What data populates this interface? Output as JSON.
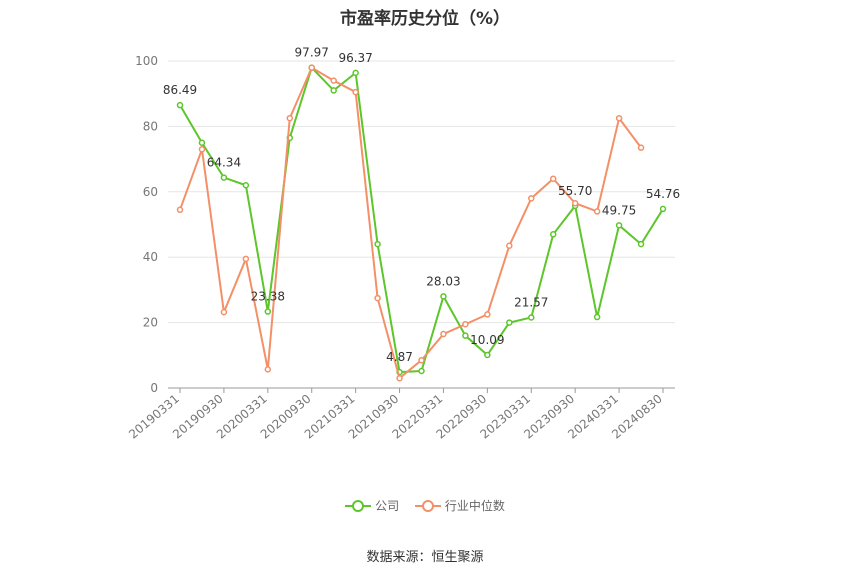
{
  "title": "市盈率历史分位（%）",
  "source": "数据来源：恒生聚源",
  "colors": {
    "company": "#5cc62b",
    "industry": "#f39067"
  },
  "chart_data": {
    "type": "line",
    "title": "市盈率历史分位（%）",
    "ylim": [
      0,
      100
    ],
    "yticks": [
      0,
      20,
      40,
      60,
      80,
      100
    ],
    "grid": true,
    "legend": "bottom",
    "x_tick_labels": [
      "20190331",
      "20190930",
      "20200331",
      "20200930",
      "20210331",
      "20210930",
      "20220331",
      "20220930",
      "20230331",
      "20230930",
      "20240331",
      "20240830"
    ],
    "x": [
      "20190331",
      "20190630",
      "20190930",
      "20191231",
      "20200331",
      "20200630",
      "20200930",
      "20201231",
      "20210331",
      "20210630",
      "20210930",
      "20211231",
      "20220331",
      "20220630",
      "20220930",
      "20221231",
      "20230331",
      "20230630",
      "20230930",
      "20231231",
      "20240331",
      "20240630",
      "20240830"
    ],
    "series": [
      {
        "name": "公司",
        "values": [
          86.49,
          75.0,
          64.34,
          62.0,
          23.38,
          76.5,
          97.97,
          91.0,
          96.37,
          44.0,
          4.87,
          5.2,
          28.03,
          16.0,
          10.09,
          20.0,
          21.57,
          47.0,
          55.7,
          21.7,
          49.75,
          44.0,
          54.76
        ]
      },
      {
        "name": "行业中位数",
        "values": [
          54.5,
          73.0,
          23.2,
          39.5,
          5.7,
          82.5,
          97.97,
          94.0,
          90.5,
          27.5,
          3.0,
          8.5,
          16.5,
          19.5,
          22.5,
          43.5,
          58.0,
          64.0,
          56.5,
          54.0,
          82.5,
          73.5,
          null
        ]
      }
    ],
    "data_labels": [
      {
        "series": 0,
        "index": 0,
        "text": "86.49"
      },
      {
        "series": 0,
        "index": 2,
        "text": "64.34"
      },
      {
        "series": 0,
        "index": 4,
        "text": "23.38"
      },
      {
        "series": 0,
        "index": 6,
        "text": "97.97"
      },
      {
        "series": 0,
        "index": 8,
        "text": "96.37"
      },
      {
        "series": 0,
        "index": 10,
        "text": "4.87"
      },
      {
        "series": 0,
        "index": 12,
        "text": "28.03"
      },
      {
        "series": 0,
        "index": 14,
        "text": "10.09"
      },
      {
        "series": 0,
        "index": 16,
        "text": "21.57"
      },
      {
        "series": 0,
        "index": 18,
        "text": "55.70"
      },
      {
        "series": 0,
        "index": 20,
        "text": "49.75"
      },
      {
        "series": 0,
        "index": 22,
        "text": "54.76"
      }
    ]
  }
}
